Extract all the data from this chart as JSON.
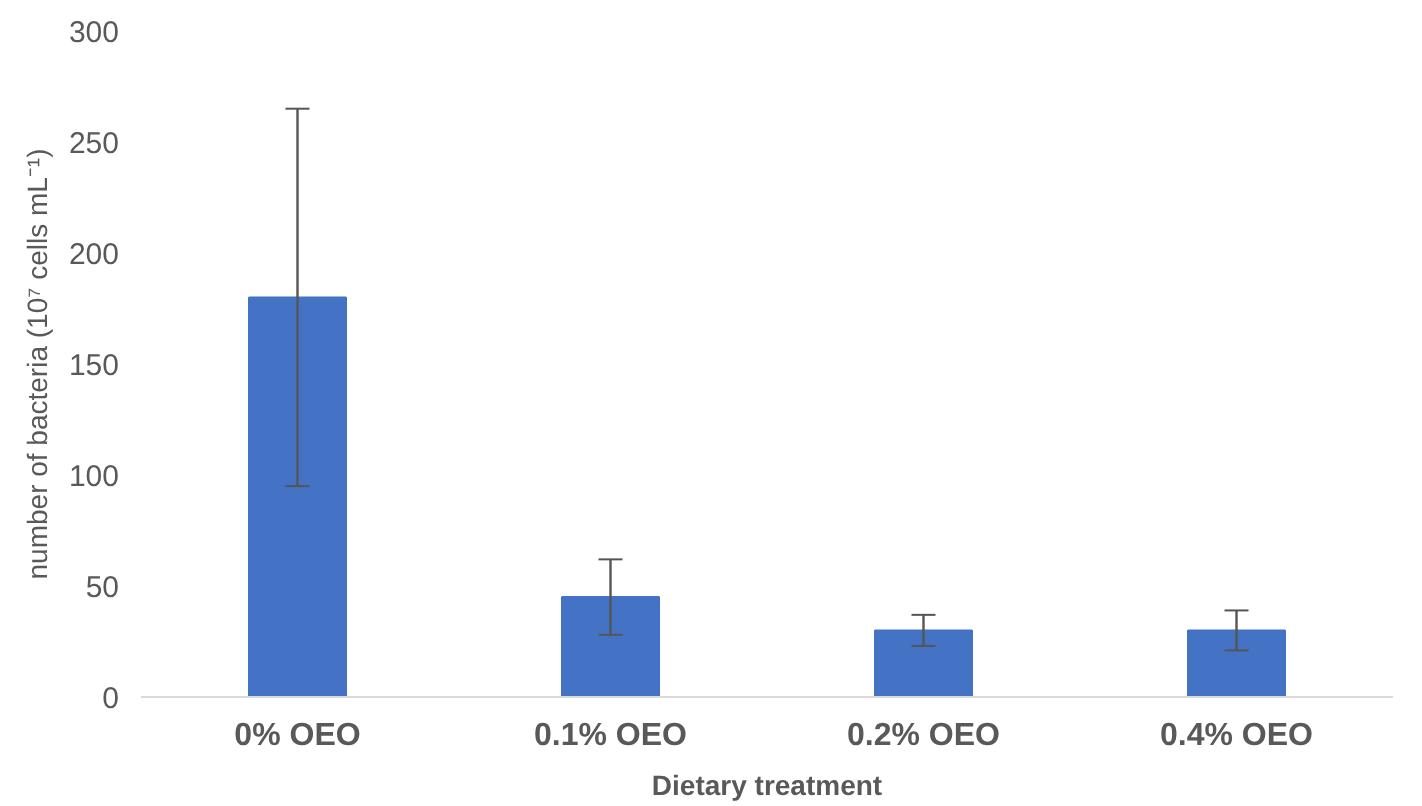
{
  "chart_data": {
    "type": "bar",
    "xlabel": "Dietary treatment",
    "ylabel": "number of bacteria (10⁷ cells mL⁻¹)",
    "categories": [
      "0% OEO",
      "0.1% OEO",
      "0.2% OEO",
      "0.4% OEO"
    ],
    "values": [
      180,
      45,
      30,
      30
    ],
    "errors": [
      85,
      17,
      7,
      9
    ],
    "color": "#4472c4",
    "ylim": [
      0,
      300
    ],
    "yticks": [
      0,
      50,
      100,
      150,
      200,
      250,
      300
    ],
    "grid": false
  }
}
